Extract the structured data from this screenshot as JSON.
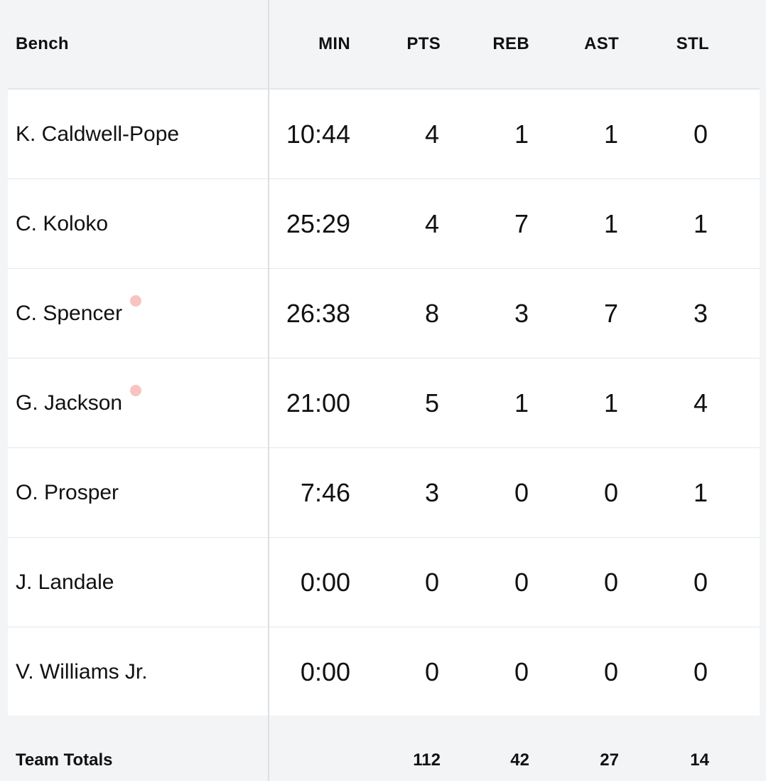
{
  "header": {
    "section_label": "Bench",
    "columns": [
      "MIN",
      "PTS",
      "REB",
      "AST",
      "STL"
    ]
  },
  "players": [
    {
      "name": "K. Caldwell-Pope",
      "min": "10:44",
      "pts": "4",
      "reb": "1",
      "ast": "1",
      "stl": "0",
      "indicator": false
    },
    {
      "name": "C. Koloko",
      "min": "25:29",
      "pts": "4",
      "reb": "7",
      "ast": "1",
      "stl": "1",
      "indicator": false
    },
    {
      "name": "C. Spencer",
      "min": "26:38",
      "pts": "8",
      "reb": "3",
      "ast": "7",
      "stl": "3",
      "indicator": true
    },
    {
      "name": "G. Jackson",
      "min": "21:00",
      "pts": "5",
      "reb": "1",
      "ast": "1",
      "stl": "4",
      "indicator": true
    },
    {
      "name": "O. Prosper",
      "min": "7:46",
      "pts": "3",
      "reb": "0",
      "ast": "0",
      "stl": "1",
      "indicator": false
    },
    {
      "name": "J. Landale",
      "min": "0:00",
      "pts": "0",
      "reb": "0",
      "ast": "0",
      "stl": "0",
      "indicator": false
    },
    {
      "name": "V. Williams Jr.",
      "min": "0:00",
      "pts": "0",
      "reb": "0",
      "ast": "0",
      "stl": "0",
      "indicator": false
    }
  ],
  "totals": {
    "label": "Team Totals",
    "min": "",
    "pts": "112",
    "reb": "42",
    "ast": "27",
    "stl": "14"
  },
  "colors": {
    "background": "#f3f4f6",
    "row_background": "#ffffff",
    "indicator_dot": "#f7c4c1",
    "divider": "#dcdfe3"
  }
}
